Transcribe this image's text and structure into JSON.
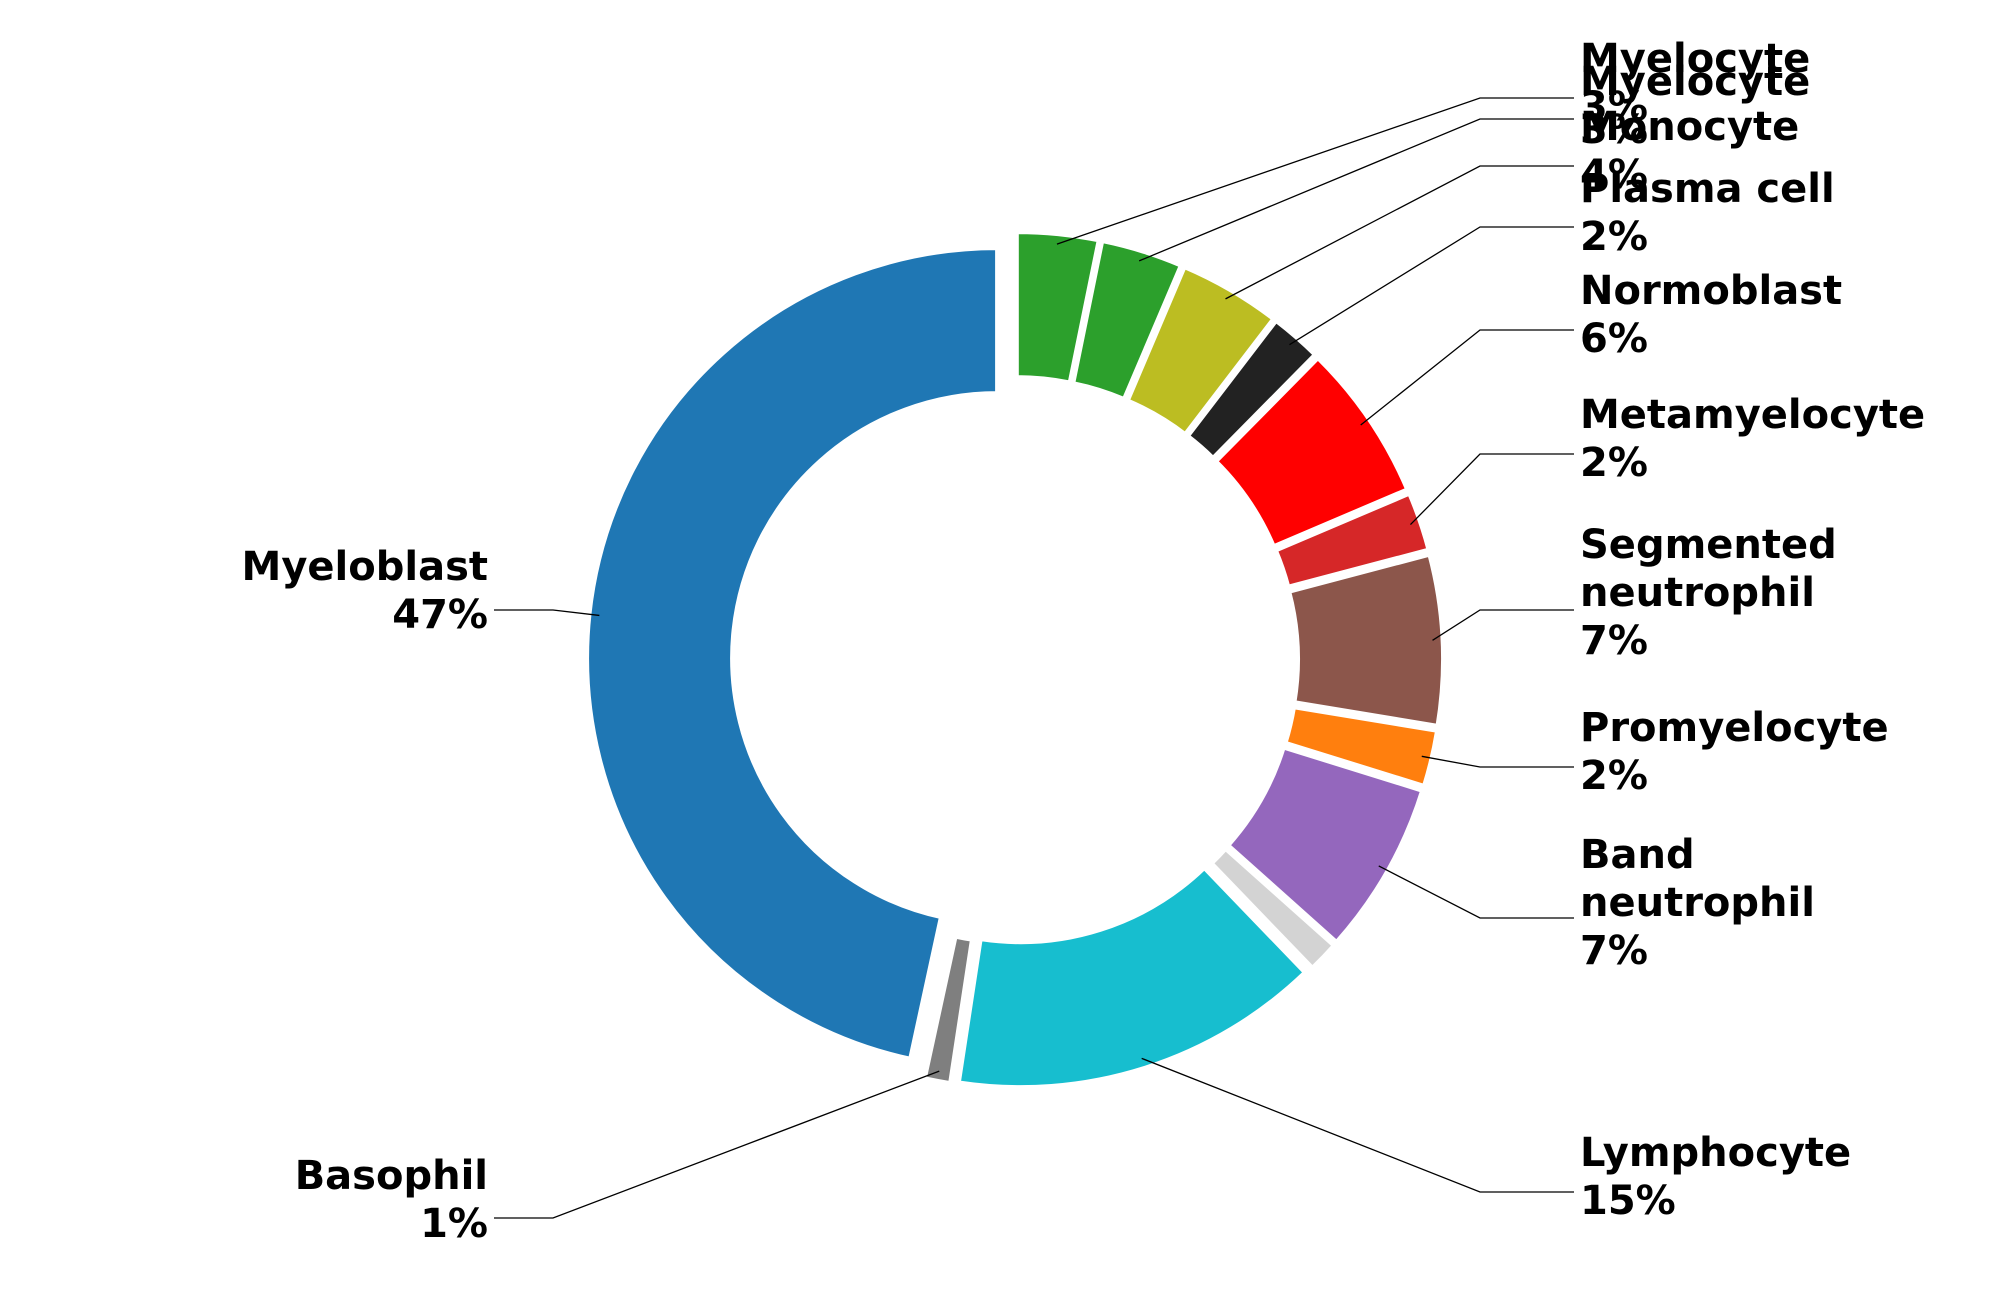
{
  "chart_data": {
    "type": "pie",
    "variant": "donut",
    "title": "",
    "legend": "none",
    "slices": [
      {
        "name": "Myelocyte",
        "pct_label": "3%",
        "value": 3.2,
        "color": "#2ca02c"
      },
      {
        "name": "Myelocyte",
        "pct_label": "3%",
        "value": 3.2,
        "color": "#2ca02c"
      },
      {
        "name": "Monocyte",
        "pct_label": "4%",
        "value": 4.0,
        "color": "#bcbd22"
      },
      {
        "name": "Plasma cell",
        "pct_label": "2%",
        "value": 2.0,
        "color": "#222222"
      },
      {
        "name": "Normoblast",
        "pct_label": "6%",
        "value": 6.2,
        "color": "#ff0000"
      },
      {
        "name": "Metamyelocyte",
        "pct_label": "2%",
        "value": 2.3,
        "color": "#d62728"
      },
      {
        "name": "Segmented neutrophil",
        "pct_label": "7%",
        "value": 6.7,
        "color": "#8c564b"
      },
      {
        "name": "Promyelocyte",
        "pct_label": "2%",
        "value": 2.2,
        "color": "#ff7f0e"
      },
      {
        "name": "Band neutrophil",
        "pct_label": "7%",
        "value": 6.8,
        "color": "#9467bd"
      },
      {
        "name": "",
        "pct_label": "",
        "value": 1.2,
        "color": "#d3d3d3"
      },
      {
        "name": "Lymphocyte",
        "pct_label": "15%",
        "value": 14.6,
        "color": "#17becf"
      },
      {
        "name": "Basophil",
        "pct_label": "1%",
        "value": 1.0,
        "color": "#7f7f7f"
      },
      {
        "name": "Myeloblast",
        "pct_label": "47%",
        "value": 46.6,
        "color": "#1f77b4"
      }
    ]
  }
}
